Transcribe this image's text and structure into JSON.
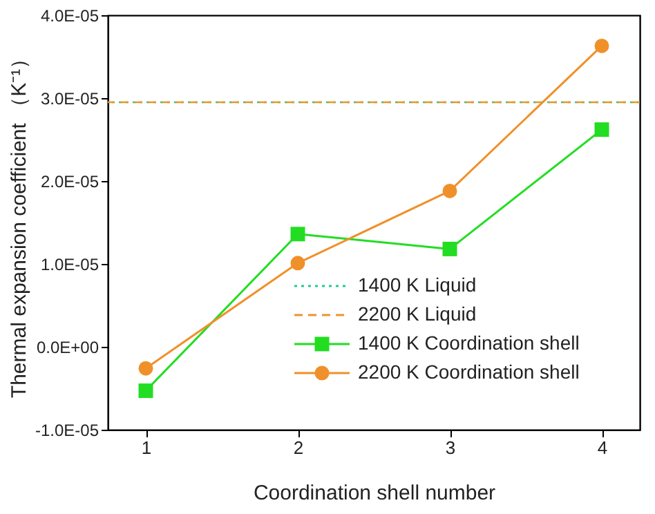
{
  "chart_data": {
    "type": "line",
    "xlabel": "Coordination shell number",
    "ylabel": "Thermal expansion coefficient （K⁻¹）",
    "x": [
      1,
      2,
      3,
      4
    ],
    "series": [
      {
        "name": "1400 K Coordination shell",
        "color": "#22dd22",
        "marker": "square",
        "values": [
          -5.3e-06,
          1.36e-05,
          1.18e-05,
          2.62e-05
        ]
      },
      {
        "name": "2200 K Coordination shell",
        "color": "#f0902a",
        "marker": "circle",
        "values": [
          -2.6e-06,
          1.01e-05,
          1.88e-05,
          3.63e-05
        ]
      }
    ],
    "ref_lines": [
      {
        "axis": "y",
        "value": 2.95e-05,
        "label": "1400 K Liquid",
        "color": "#22cc88",
        "line_style": "dotted"
      },
      {
        "axis": "y",
        "value": 2.95e-05,
        "label": "2200 K Liquid",
        "color": "#e8962e",
        "line_style": "dashed"
      }
    ],
    "xlim": [
      0.75,
      4.25
    ],
    "xticks": [
      1,
      2,
      3,
      4
    ],
    "ylim": [
      -1e-05,
      4e-05
    ],
    "yticks": [
      {
        "value": -1e-05,
        "label": "-1.0E-05"
      },
      {
        "value": 0,
        "label": "0.0E+00"
      },
      {
        "value": 1e-05,
        "label": "1.0E-05"
      },
      {
        "value": 2e-05,
        "label": "2.0E-05"
      },
      {
        "value": 3e-05,
        "label": "3.0E-05"
      },
      {
        "value": 4e-05,
        "label": "4.0E-05"
      }
    ],
    "grid": false,
    "legend": "bottom right",
    "line_style": "solid"
  }
}
